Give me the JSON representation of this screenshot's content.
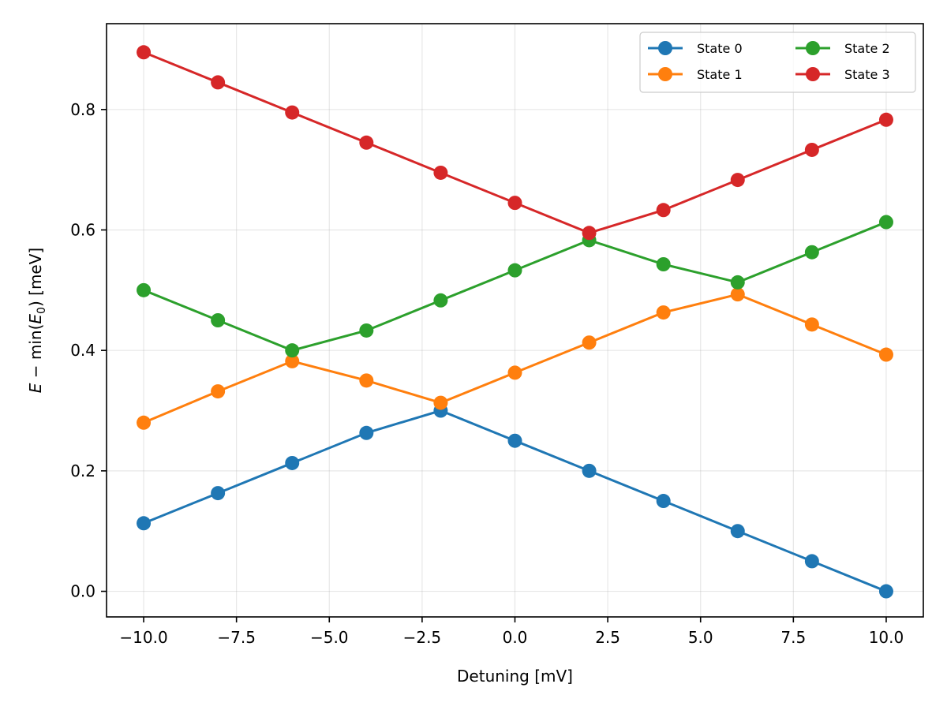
{
  "chart_data": {
    "type": "line",
    "title": "",
    "xlabel": "Detuning [mV]",
    "ylabel_parts": {
      "var": "E",
      "minus": " − min(",
      "sub_var": "E",
      "sub": "0",
      "tail": ") [meV]"
    },
    "xlim": [
      -11,
      11
    ],
    "ylim": [
      -0.0425,
      0.9425
    ],
    "xticks": [
      -10.0,
      -7.5,
      -5.0,
      -2.5,
      0.0,
      2.5,
      5.0,
      7.5,
      10.0
    ],
    "xtick_labels": [
      "−10.0",
      "−7.5",
      "−5.0",
      "−2.5",
      "0.0",
      "2.5",
      "5.0",
      "7.5",
      "10.0"
    ],
    "yticks": [
      0.0,
      0.2,
      0.4,
      0.6,
      0.8
    ],
    "ytick_labels": [
      "0.0",
      "0.2",
      "0.4",
      "0.6",
      "0.8"
    ],
    "grid": true,
    "legend_position": "top-right",
    "legend_columns": 2,
    "x": [
      -10,
      -8,
      -6,
      -4,
      -2,
      0,
      2,
      4,
      6,
      8,
      10
    ],
    "series": [
      {
        "name": "State 0",
        "color": "#1f77b4",
        "values": [
          0.113,
          0.163,
          0.213,
          0.263,
          0.3,
          0.25,
          0.2,
          0.15,
          0.1,
          0.05,
          0.0
        ]
      },
      {
        "name": "State 1",
        "color": "#ff7f0e",
        "values": [
          0.28,
          0.332,
          0.382,
          0.35,
          0.313,
          0.363,
          0.413,
          0.463,
          0.493,
          0.443,
          0.393
        ]
      },
      {
        "name": "State 2",
        "color": "#2ca02c",
        "values": [
          0.5,
          0.45,
          0.4,
          0.433,
          0.483,
          0.533,
          0.583,
          0.543,
          0.513,
          0.563,
          0.613
        ]
      },
      {
        "name": "State 3",
        "color": "#d62728",
        "values": [
          0.895,
          0.845,
          0.795,
          0.745,
          0.695,
          0.645,
          0.595,
          0.633,
          0.683,
          0.733,
          0.783
        ]
      }
    ]
  }
}
